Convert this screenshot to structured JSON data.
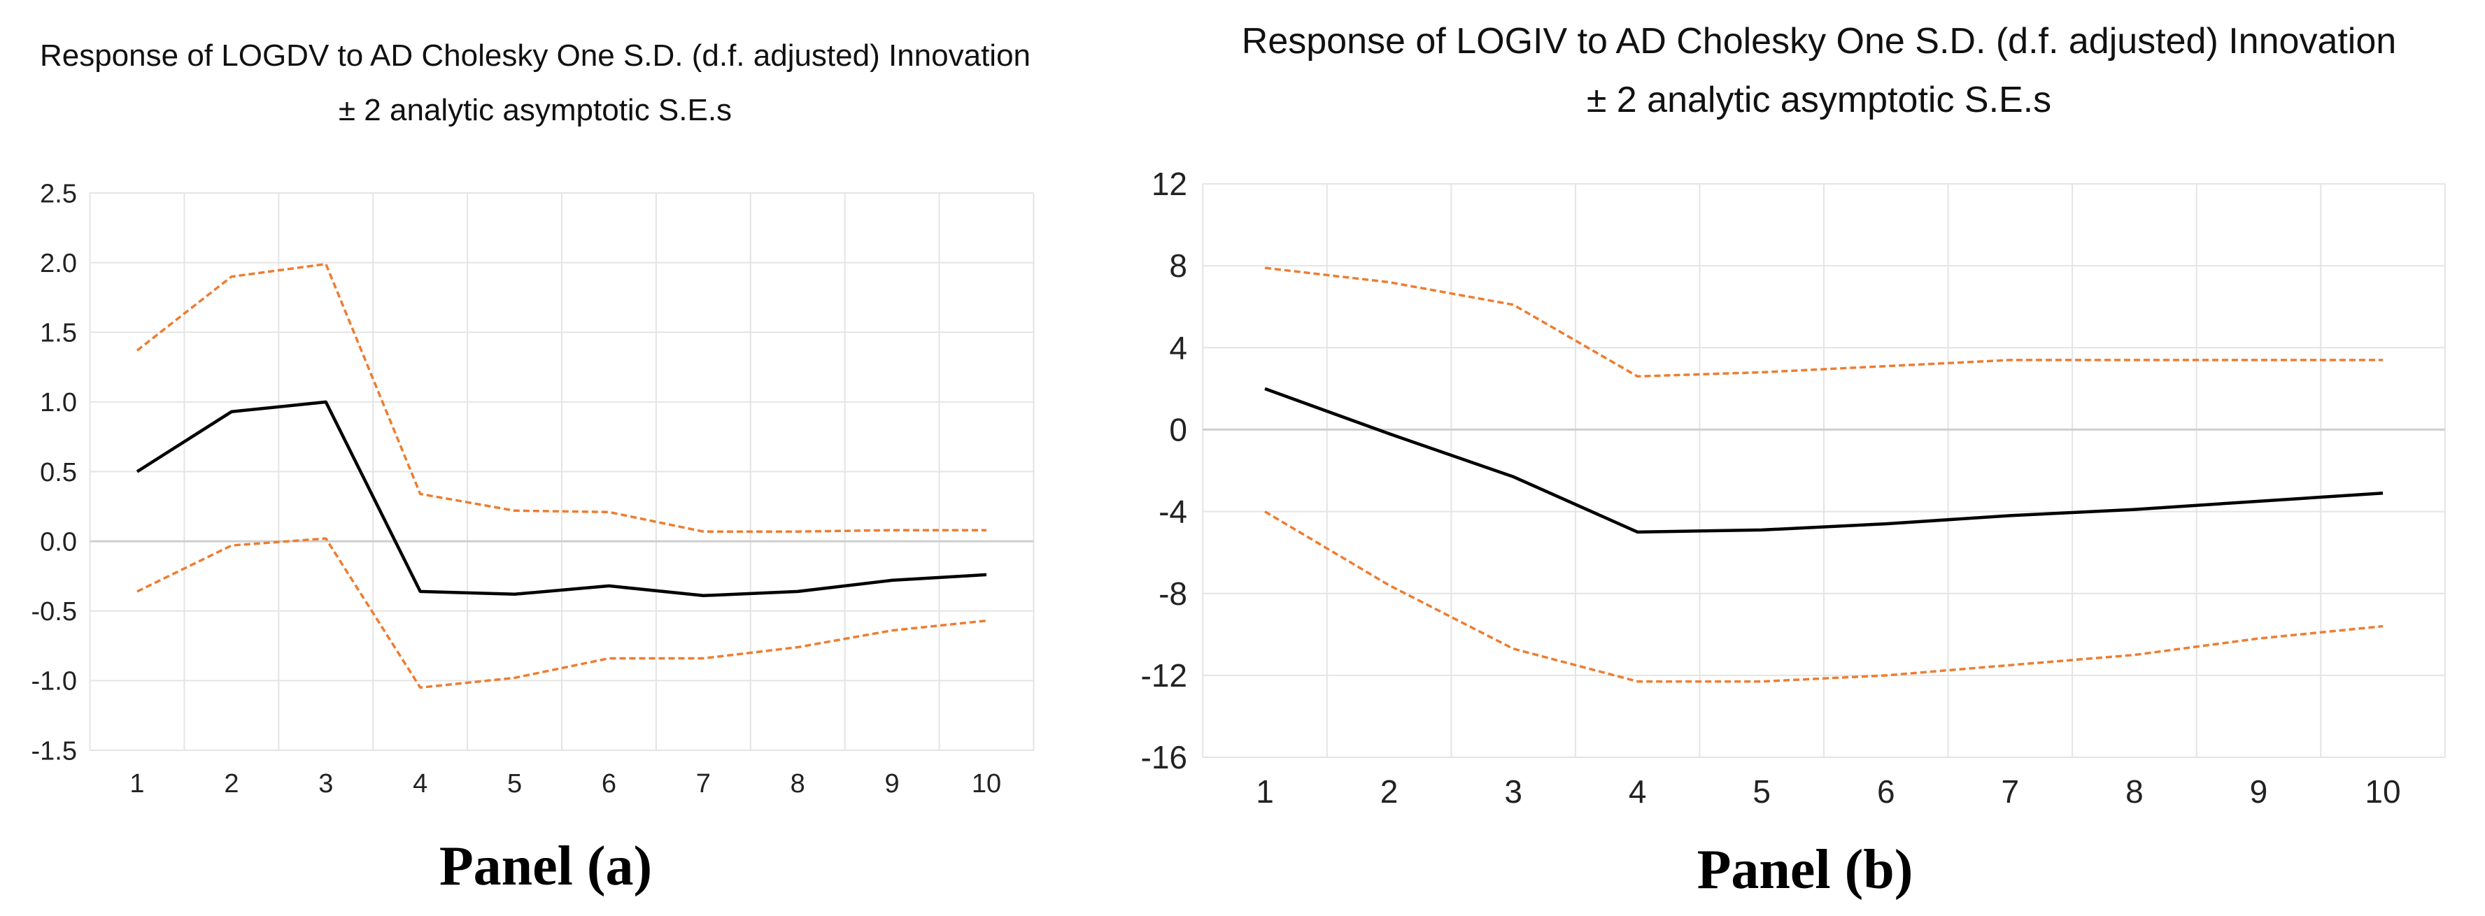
{
  "chart_data": [
    {
      "type": "line",
      "title": "Response of LOGDV to AD Cholesky One S.D. (d.f. adjusted) Innovation",
      "subtitle": "± 2 analytic asymptotic S.E.s",
      "caption": "Panel (a)",
      "x": [
        1,
        2,
        3,
        4,
        5,
        6,
        7,
        8,
        9,
        10
      ],
      "ylim": [
        -1.5,
        2.5
      ],
      "yticks": [
        2.5,
        2.0,
        1.5,
        1.0,
        0.5,
        0.0,
        -0.5,
        -1.0,
        -1.5
      ],
      "ytick_labels": [
        "2.5",
        "2.0",
        "1.5",
        "1.0",
        "0.5",
        "0.0",
        "-0.5",
        "-1.0",
        "-1.5"
      ],
      "grid": true,
      "series": [
        {
          "name": "response",
          "color": "#000000",
          "style": "solid",
          "values": [
            0.5,
            0.93,
            1.0,
            -0.36,
            -0.38,
            -0.32,
            -0.39,
            -0.36,
            -0.28,
            -0.24
          ]
        },
        {
          "name": "upper",
          "color": "#ED7D31",
          "style": "dashed",
          "values": [
            1.37,
            1.9,
            1.99,
            0.34,
            0.22,
            0.21,
            0.07,
            0.07,
            0.08,
            0.08
          ]
        },
        {
          "name": "lower",
          "color": "#ED7D31",
          "style": "dashed",
          "values": [
            -0.36,
            -0.03,
            0.02,
            -1.05,
            -0.98,
            -0.84,
            -0.84,
            -0.76,
            -0.64,
            -0.57
          ]
        }
      ]
    },
    {
      "type": "line",
      "title": "Response of LOGIV to AD Cholesky One S.D. (d.f. adjusted) Innovation",
      "subtitle": "± 2 analytic asymptotic S.E.s",
      "caption": "Panel (b)",
      "x": [
        1,
        2,
        3,
        4,
        5,
        6,
        7,
        8,
        9,
        10
      ],
      "ylim": [
        -16,
        12
      ],
      "yticks": [
        12,
        8,
        4,
        0,
        -4,
        -8,
        -12,
        -16
      ],
      "ytick_labels": [
        "12",
        "8",
        "4",
        "0",
        "-4",
        "-8",
        "-12",
        "-16"
      ],
      "grid": true,
      "series": [
        {
          "name": "response",
          "color": "#000000",
          "style": "solid",
          "values": [
            2.0,
            -0.2,
            -2.3,
            -5.0,
            -4.9,
            -4.6,
            -4.2,
            -3.9,
            -3.5,
            -3.1
          ]
        },
        {
          "name": "upper",
          "color": "#ED7D31",
          "style": "dashed",
          "values": [
            7.9,
            7.2,
            6.1,
            2.6,
            2.8,
            3.1,
            3.4,
            3.4,
            3.4,
            3.4
          ]
        },
        {
          "name": "lower",
          "color": "#ED7D31",
          "style": "dashed",
          "values": [
            -4.0,
            -7.6,
            -10.7,
            -12.3,
            -12.3,
            -12.0,
            -11.5,
            -11.0,
            -10.2,
            -9.6
          ]
        }
      ]
    }
  ]
}
